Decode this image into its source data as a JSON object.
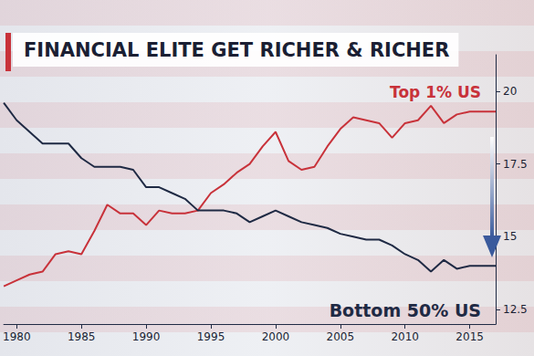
{
  "chart_data": {
    "type": "line",
    "title": "FINANCIAL ELITE GET RICHER & RICHER",
    "x": [
      1979,
      1980,
      1981,
      1982,
      1983,
      1984,
      1985,
      1986,
      1987,
      1988,
      1989,
      1990,
      1991,
      1992,
      1993,
      1994,
      1995,
      1996,
      1997,
      1998,
      1999,
      2000,
      2001,
      2002,
      2003,
      2004,
      2005,
      2006,
      2007,
      2008,
      2009,
      2010,
      2011,
      2012,
      2013,
      2014,
      2015,
      2016,
      2017
    ],
    "series": [
      {
        "name": "Top 1% US",
        "color": "#c8323a",
        "values": [
          13.3,
          13.5,
          13.7,
          13.8,
          14.4,
          14.5,
          14.4,
          15.2,
          16.1,
          15.8,
          15.8,
          15.4,
          15.9,
          15.8,
          15.8,
          15.9,
          16.5,
          16.8,
          17.2,
          17.5,
          18.1,
          18.6,
          17.6,
          17.3,
          17.4,
          18.1,
          18.7,
          19.1,
          19.0,
          18.9,
          18.4,
          18.9,
          19.0,
          19.5,
          18.9,
          19.2,
          19.3,
          19.3,
          19.3
        ]
      },
      {
        "name": "Bottom 50% US",
        "color": "#1f2a44",
        "values": [
          19.6,
          19.0,
          18.6,
          18.2,
          18.2,
          18.2,
          17.7,
          17.4,
          17.4,
          17.4,
          17.3,
          16.7,
          16.7,
          16.5,
          16.3,
          15.9,
          15.9,
          15.9,
          15.8,
          15.5,
          15.7,
          15.9,
          15.7,
          15.5,
          15.4,
          15.3,
          15.1,
          15.0,
          14.9,
          14.9,
          14.7,
          14.4,
          14.2,
          13.8,
          14.2,
          13.9,
          14.0,
          14.0,
          14.0
        ]
      }
    ],
    "xlim": [
      1979,
      2017
    ],
    "xticks": [
      1980,
      1985,
      1990,
      1995,
      2000,
      2005,
      2010,
      2015
    ],
    "ylim": [
      12,
      21.25
    ],
    "yticks": [
      12.5,
      15,
      17.5,
      20
    ],
    "grid": false
  }
}
